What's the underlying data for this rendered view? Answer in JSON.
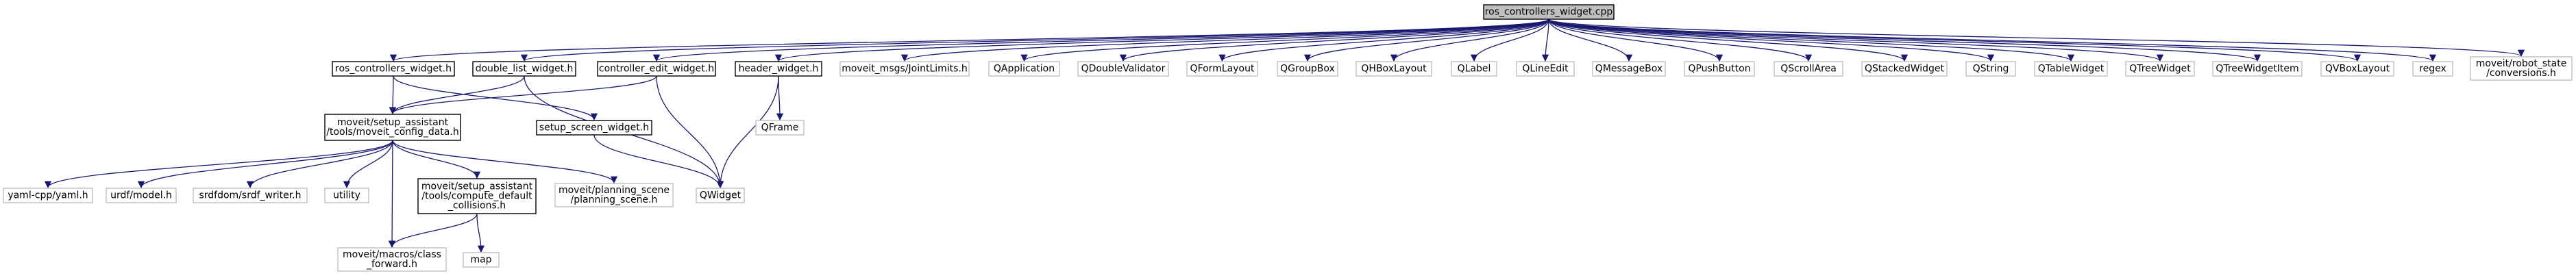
{
  "colors": {
    "edge": "#191970",
    "root_fill": "#bfbfbf",
    "root_stroke": "#000000",
    "documented_stroke": "#000000",
    "external_stroke": "#bfbfbf",
    "node_fill": "#ffffff",
    "text": "#000000"
  },
  "nodes": [
    {
      "id": "root",
      "lines": [
        "ros_controllers_widget.cpp"
      ],
      "kind": "root"
    },
    {
      "id": "rcw_h",
      "lines": [
        "ros_controllers_widget.h"
      ],
      "kind": "documented"
    },
    {
      "id": "dlw_h",
      "lines": [
        "double_list_widget.h"
      ],
      "kind": "documented"
    },
    {
      "id": "cew_h",
      "lines": [
        "controller_edit_widget.h"
      ],
      "kind": "documented"
    },
    {
      "id": "hw_h",
      "lines": [
        "header_widget.h"
      ],
      "kind": "documented"
    },
    {
      "id": "jl_h",
      "lines": [
        "moveit_msgs/JointLimits.h"
      ],
      "kind": "external"
    },
    {
      "id": "qapp",
      "lines": [
        "QApplication"
      ],
      "kind": "external"
    },
    {
      "id": "qdv",
      "lines": [
        "QDoubleValidator"
      ],
      "kind": "external"
    },
    {
      "id": "qfl",
      "lines": [
        "QFormLayout"
      ],
      "kind": "external"
    },
    {
      "id": "qgb",
      "lines": [
        "QGroupBox"
      ],
      "kind": "external"
    },
    {
      "id": "qhbl",
      "lines": [
        "QHBoxLayout"
      ],
      "kind": "external"
    },
    {
      "id": "qlabel",
      "lines": [
        "QLabel"
      ],
      "kind": "external"
    },
    {
      "id": "qle",
      "lines": [
        "QLineEdit"
      ],
      "kind": "external"
    },
    {
      "id": "qmb",
      "lines": [
        "QMessageBox"
      ],
      "kind": "external"
    },
    {
      "id": "qpb",
      "lines": [
        "QPushButton"
      ],
      "kind": "external"
    },
    {
      "id": "qsa",
      "lines": [
        "QScrollArea"
      ],
      "kind": "external"
    },
    {
      "id": "qsw",
      "lines": [
        "QStackedWidget"
      ],
      "kind": "external"
    },
    {
      "id": "qstr",
      "lines": [
        "QString"
      ],
      "kind": "external"
    },
    {
      "id": "qtw",
      "lines": [
        "QTableWidget"
      ],
      "kind": "external"
    },
    {
      "id": "qtrw",
      "lines": [
        "QTreeWidget"
      ],
      "kind": "external"
    },
    {
      "id": "qtwi",
      "lines": [
        "QTreeWidgetItem"
      ],
      "kind": "external"
    },
    {
      "id": "qvbl",
      "lines": [
        "QVBoxLayout"
      ],
      "kind": "external"
    },
    {
      "id": "regex",
      "lines": [
        "regex"
      ],
      "kind": "external"
    },
    {
      "id": "rsc_h",
      "lines": [
        "moveit/robot_state",
        "/conversions.h"
      ],
      "kind": "external"
    },
    {
      "id": "mcd_h",
      "lines": [
        "moveit/setup_assistant",
        "/tools/moveit_config_data.h"
      ],
      "kind": "documented"
    },
    {
      "id": "ssw_h",
      "lines": [
        "setup_screen_widget.h"
      ],
      "kind": "documented"
    },
    {
      "id": "qframe",
      "lines": [
        "QFrame"
      ],
      "kind": "external"
    },
    {
      "id": "yaml_h",
      "lines": [
        "yaml-cpp/yaml.h"
      ],
      "kind": "external"
    },
    {
      "id": "urdf_h",
      "lines": [
        "urdf/model.h"
      ],
      "kind": "external"
    },
    {
      "id": "srdfw_h",
      "lines": [
        "srdfdom/srdf_writer.h"
      ],
      "kind": "external"
    },
    {
      "id": "utility",
      "lines": [
        "utility"
      ],
      "kind": "external"
    },
    {
      "id": "cdc_h",
      "lines": [
        "moveit/setup_assistant",
        "/tools/compute_default",
        "_collisions.h"
      ],
      "kind": "documented"
    },
    {
      "id": "ps_h",
      "lines": [
        "moveit/planning_scene",
        "/planning_scene.h"
      ],
      "kind": "external"
    },
    {
      "id": "qwidget",
      "lines": [
        "QWidget"
      ],
      "kind": "external"
    },
    {
      "id": "cf_h",
      "lines": [
        "moveit/macros/class",
        "_forward.h"
      ],
      "kind": "external"
    },
    {
      "id": "map",
      "lines": [
        "map"
      ],
      "kind": "external"
    }
  ],
  "edges": [
    [
      "root",
      "rcw_h"
    ],
    [
      "root",
      "dlw_h"
    ],
    [
      "root",
      "cew_h"
    ],
    [
      "root",
      "hw_h"
    ],
    [
      "root",
      "jl_h"
    ],
    [
      "root",
      "qapp"
    ],
    [
      "root",
      "qdv"
    ],
    [
      "root",
      "qfl"
    ],
    [
      "root",
      "qgb"
    ],
    [
      "root",
      "qhbl"
    ],
    [
      "root",
      "qlabel"
    ],
    [
      "root",
      "qle"
    ],
    [
      "root",
      "qmb"
    ],
    [
      "root",
      "qpb"
    ],
    [
      "root",
      "qsa"
    ],
    [
      "root",
      "qsw"
    ],
    [
      "root",
      "qstr"
    ],
    [
      "root",
      "qtw"
    ],
    [
      "root",
      "qtrw"
    ],
    [
      "root",
      "qtwi"
    ],
    [
      "root",
      "qvbl"
    ],
    [
      "root",
      "regex"
    ],
    [
      "root",
      "rsc_h"
    ],
    [
      "rcw_h",
      "mcd_h"
    ],
    [
      "rcw_h",
      "ssw_h"
    ],
    [
      "dlw_h",
      "mcd_h"
    ],
    [
      "dlw_h",
      "qwidget"
    ],
    [
      "cew_h",
      "mcd_h"
    ],
    [
      "cew_h",
      "qwidget"
    ],
    [
      "hw_h",
      "qframe"
    ],
    [
      "hw_h",
      "qwidget"
    ],
    [
      "ssw_h",
      "qwidget"
    ],
    [
      "mcd_h",
      "yaml_h"
    ],
    [
      "mcd_h",
      "urdf_h"
    ],
    [
      "mcd_h",
      "srdfw_h"
    ],
    [
      "mcd_h",
      "utility"
    ],
    [
      "mcd_h",
      "cdc_h"
    ],
    [
      "mcd_h",
      "ps_h"
    ],
    [
      "mcd_h",
      "cf_h"
    ],
    [
      "cdc_h",
      "cf_h"
    ],
    [
      "cdc_h",
      "map"
    ]
  ]
}
